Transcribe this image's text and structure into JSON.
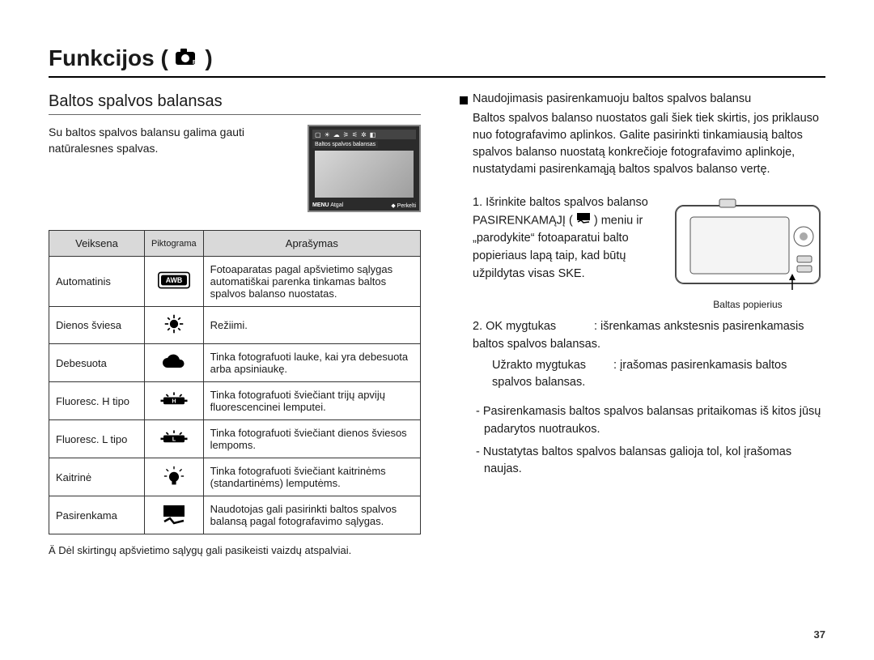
{
  "chapter": {
    "title_prefix": "Funkcijos (",
    "title_suffix": ")"
  },
  "left": {
    "subhead": "Baltos spalvos balansas",
    "intro": "Su baltos spalvos balansu galima gauti natūralesnes spalvas.",
    "lcd": {
      "label": "Baltos spalvos balansas",
      "bottom_left": "Atgal",
      "bottom_right": "Perkelti",
      "menu_tag": "MENU"
    },
    "table": {
      "headers": {
        "mode": "Veiksena",
        "icon": "Piktograma",
        "desc": "Aprašymas"
      },
      "rows": [
        {
          "mode": "Automatinis",
          "icon": "awb",
          "desc": "Fotoaparatas pagal apšvietimo sąlygas automatiškai parenka tinkamas baltos spalvos balanso nuostatas."
        },
        {
          "mode": "Dienos šviesa",
          "icon": "sun",
          "desc": "Režiimi."
        },
        {
          "mode": "Debesuota",
          "icon": "cloud",
          "desc": "Tinka fotografuoti lauke, kai yra debesuota arba apsiniaukę."
        },
        {
          "mode": "Fluoresc. H tipo",
          "icon": "fluo-h",
          "desc": "Tinka fotografuoti šviečiant trijų apvijų fluorescencinei lemputei."
        },
        {
          "mode": "Fluoresc. L tipo",
          "icon": "fluo-l",
          "desc": "Tinka fotografuoti šviečiant dienos šviesos lempoms."
        },
        {
          "mode": "Kaitrinė",
          "icon": "bulb",
          "desc": "Tinka fotografuoti šviečiant kaitrinėms (standartinėms) lemputėms."
        },
        {
          "mode": "Pasirenkama",
          "icon": "custom",
          "desc": "Naudotojas gali pasirinkti baltos spalvos balansą pagal fotografavimo sąlygas."
        }
      ]
    },
    "footnote": "Ä Dėl skirtingų apšvietimo sąlygų gali pasikeisti vaizdų atspalviai."
  },
  "right": {
    "bullet_title": "Naudojimasis pasirenkamuoju baltos spalvos balansu",
    "para": "Baltos spalvos balanso nuostatos gali šiek tiek skirtis, jos priklauso nuo fotografavimo aplinkos. Galite pasirinkti tinkamiausią baltos spalvos balanso nuostatą konkrečioje fotografavimo aplinkoje, nustatydami pasirenkamąją baltos spalvos balanso vertę.",
    "step1_a": "1. Išrinkite baltos spalvos balanso PASIRENKAMĄJĮ (",
    "step1_b": ") meniu ir „parodykite“ fotoaparatui balto popieriaus lapą taip, kad būtų užpildytas visas SKE.",
    "camera_caption": "Baltas popierius",
    "step2_key": "2. OK mygtukas",
    "step2_val": ": išrenkamas ankstesnis pasirenkamasis baltos spalvos balansas.",
    "step3_key": "Užrakto mygtukas",
    "step3_val": ": įrašomas pasirenkamasis baltos spalvos balansas.",
    "dash1": "- Pasirenkamasis baltos spalvos balansas pritaikomas iš kitos jūsų padarytos nuotraukos.",
    "dash2": "- Nustatytas baltos spalvos balansas galioja tol, kol įrašomas naujas."
  },
  "page_number": "37",
  "colors": {
    "header_bg": "#d9d9d9",
    "border": "#333333",
    "text": "#1a1a1a"
  }
}
